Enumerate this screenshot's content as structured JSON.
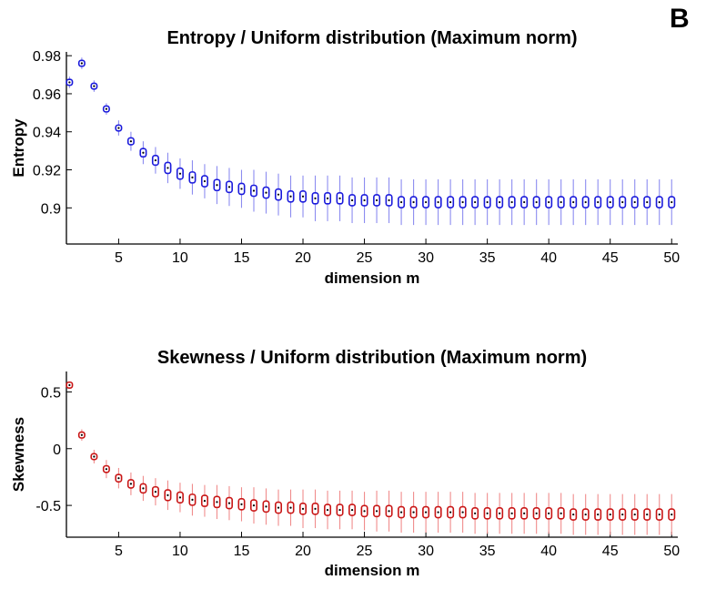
{
  "panel_label": "B",
  "chart_data": [
    {
      "type": "scatter",
      "title": "Entropy / Uniform distribution (Maximum norm)",
      "xlabel": "dimension m",
      "ylabel": "Entropy",
      "xlim": [
        0.75,
        50.5
      ],
      "ylim": [
        0.881,
        0.982
      ],
      "xticks": [
        5,
        10,
        15,
        20,
        25,
        30,
        35,
        40,
        45,
        50
      ],
      "yticks": [
        0.9,
        0.92,
        0.94,
        0.96,
        0.98
      ],
      "ytick_labels": [
        "0.9",
        "0.92",
        "0.94",
        "0.96",
        "0.98"
      ],
      "color": "#1a1adb",
      "errorbar_color": "#8c8cf0",
      "x": [
        1,
        2,
        3,
        4,
        5,
        6,
        7,
        8,
        9,
        10,
        11,
        12,
        13,
        14,
        15,
        16,
        17,
        18,
        19,
        20,
        21,
        22,
        23,
        24,
        25,
        26,
        27,
        28,
        29,
        30,
        31,
        32,
        33,
        34,
        35,
        36,
        37,
        38,
        39,
        40,
        41,
        42,
        43,
        44,
        45,
        46,
        47,
        48,
        49,
        50
      ],
      "y": [
        0.966,
        0.976,
        0.964,
        0.952,
        0.942,
        0.935,
        0.929,
        0.925,
        0.921,
        0.918,
        0.916,
        0.914,
        0.912,
        0.911,
        0.91,
        0.909,
        0.908,
        0.907,
        0.906,
        0.906,
        0.905,
        0.905,
        0.905,
        0.904,
        0.904,
        0.904,
        0.904,
        0.903,
        0.903,
        0.903,
        0.903,
        0.903,
        0.903,
        0.903,
        0.903,
        0.903,
        0.903,
        0.903,
        0.903,
        0.903,
        0.903,
        0.903,
        0.903,
        0.903,
        0.903,
        0.903,
        0.903,
        0.903,
        0.903,
        0.903
      ],
      "err": [
        0.003,
        0.003,
        0.003,
        0.003,
        0.004,
        0.005,
        0.006,
        0.007,
        0.008,
        0.008,
        0.009,
        0.009,
        0.01,
        0.01,
        0.01,
        0.011,
        0.011,
        0.011,
        0.011,
        0.011,
        0.012,
        0.012,
        0.012,
        0.012,
        0.012,
        0.012,
        0.012,
        0.012,
        0.012,
        0.012,
        0.012,
        0.012,
        0.012,
        0.012,
        0.012,
        0.012,
        0.012,
        0.012,
        0.012,
        0.012,
        0.012,
        0.012,
        0.012,
        0.012,
        0.012,
        0.012,
        0.012,
        0.012,
        0.012,
        0.012
      ]
    },
    {
      "type": "scatter",
      "title": "Skewness / Uniform distribution (Maximum norm)",
      "xlabel": "dimension m",
      "ylabel": "Skewness",
      "xlim": [
        0.75,
        50.5
      ],
      "ylim": [
        -0.78,
        0.68
      ],
      "xticks": [
        5,
        10,
        15,
        20,
        25,
        30,
        35,
        40,
        45,
        50
      ],
      "yticks": [
        -0.5,
        0,
        0.5
      ],
      "ytick_labels": [
        "-0.5",
        "0",
        "0.5"
      ],
      "color": "#c81414",
      "errorbar_color": "#f08c8c",
      "x": [
        1,
        2,
        3,
        4,
        5,
        6,
        7,
        8,
        9,
        10,
        11,
        12,
        13,
        14,
        15,
        16,
        17,
        18,
        19,
        20,
        21,
        22,
        23,
        24,
        25,
        26,
        27,
        28,
        29,
        30,
        31,
        32,
        33,
        34,
        35,
        36,
        37,
        38,
        39,
        40,
        41,
        42,
        43,
        44,
        45,
        46,
        47,
        48,
        49,
        50
      ],
      "y": [
        0.56,
        0.12,
        -0.07,
        -0.18,
        -0.26,
        -0.31,
        -0.35,
        -0.38,
        -0.41,
        -0.43,
        -0.45,
        -0.46,
        -0.47,
        -0.48,
        -0.49,
        -0.5,
        -0.51,
        -0.52,
        -0.52,
        -0.53,
        -0.53,
        -0.54,
        -0.54,
        -0.54,
        -0.55,
        -0.55,
        -0.55,
        -0.56,
        -0.56,
        -0.56,
        -0.56,
        -0.56,
        -0.56,
        -0.57,
        -0.57,
        -0.57,
        -0.57,
        -0.57,
        -0.57,
        -0.57,
        -0.57,
        -0.58,
        -0.58,
        -0.58,
        -0.58,
        -0.58,
        -0.58,
        -0.58,
        -0.58,
        -0.58
      ],
      "err": [
        0.03,
        0.05,
        0.06,
        0.08,
        0.09,
        0.1,
        0.11,
        0.12,
        0.13,
        0.13,
        0.14,
        0.14,
        0.15,
        0.15,
        0.15,
        0.16,
        0.16,
        0.16,
        0.16,
        0.17,
        0.17,
        0.17,
        0.17,
        0.17,
        0.17,
        0.18,
        0.18,
        0.18,
        0.18,
        0.18,
        0.18,
        0.18,
        0.18,
        0.18,
        0.18,
        0.18,
        0.18,
        0.18,
        0.18,
        0.18,
        0.18,
        0.18,
        0.18,
        0.18,
        0.18,
        0.18,
        0.18,
        0.18,
        0.18,
        0.18
      ]
    }
  ]
}
